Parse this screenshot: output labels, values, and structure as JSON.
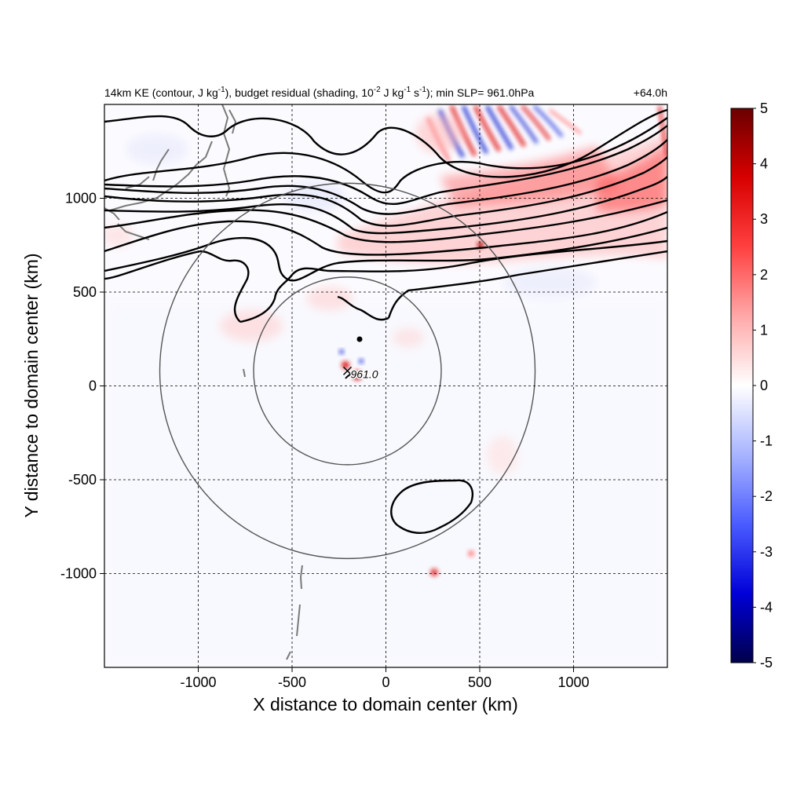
{
  "chart_data": {
    "type": "heatmap",
    "title_left": {
      "p1": "14km KE (contour, J kg",
      "p1_sup": "-1",
      "p2": "), budget residual (shading, 10",
      "p2_sup": "-2",
      "p3": " J kg",
      "p3_sup": "-1",
      "p4": " s",
      "p4_sup": "-1",
      "p5": "); min SLP= 961.0hPa"
    },
    "title_right": "+64.0h",
    "xlabel": "X distance to domain center (km)",
    "ylabel": "Y distance to domain center (km)",
    "xlim": [
      -1500,
      1500
    ],
    "ylim": [
      -1500,
      1500
    ],
    "x_ticks": [
      -1000,
      -500,
      0,
      500,
      1000
    ],
    "y_ticks": [
      -1000,
      -500,
      0,
      500,
      1000
    ],
    "x_tick_labels": [
      "-1000",
      "-500",
      "0",
      "500",
      "1000"
    ],
    "y_tick_labels": [
      "-1000",
      "-500",
      "0",
      "500",
      "1000"
    ],
    "grid": "dashed",
    "colorbar": {
      "range": [
        -5,
        5
      ],
      "ticks": [
        5,
        4,
        3,
        2,
        1,
        0,
        -1,
        -2,
        -3,
        -4,
        -5
      ],
      "tick_labels": [
        "5",
        "4",
        "3",
        "2",
        "1",
        "0",
        "-1",
        "-2",
        "-3",
        "-4",
        "-5"
      ],
      "colormap": [
        "#00004a",
        "#0000d8",
        "#4a5cff",
        "#a8b4ff",
        "#ffffff",
        "#ffa8a8",
        "#ff4040",
        "#d80000",
        "#6a0000"
      ],
      "placement": "right"
    },
    "storm_center": {
      "x": -205,
      "y": 80,
      "label": "961.0"
    },
    "range_rings_km": [
      500,
      1000
    ],
    "colors": {
      "contour": "#000000",
      "ring": "#555555",
      "coast": "#7a7a7a",
      "grid": "#000000"
    }
  }
}
